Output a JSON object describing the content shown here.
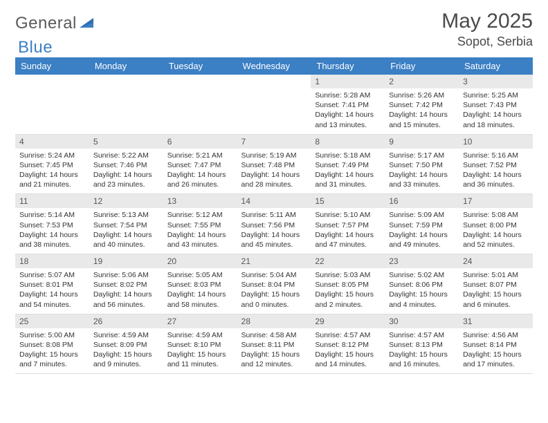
{
  "logo": {
    "word1": "General",
    "word2": "Blue",
    "accent_color": "#3b7fc4",
    "text_color": "#5a5a5a"
  },
  "header": {
    "month_title": "May 2025",
    "location": "Sopot, Serbia"
  },
  "calendar": {
    "day_header_bg": "#3b7fc4",
    "day_header_fg": "#ffffff",
    "daynum_bg": "#e9e9e9",
    "border_color": "#dcdcdc",
    "days_of_week": [
      "Sunday",
      "Monday",
      "Tuesday",
      "Wednesday",
      "Thursday",
      "Friday",
      "Saturday"
    ],
    "weeks": [
      [
        null,
        null,
        null,
        null,
        {
          "n": "1",
          "sunrise": "Sunrise: 5:28 AM",
          "sunset": "Sunset: 7:41 PM",
          "daylight": "Daylight: 14 hours and 13 minutes."
        },
        {
          "n": "2",
          "sunrise": "Sunrise: 5:26 AM",
          "sunset": "Sunset: 7:42 PM",
          "daylight": "Daylight: 14 hours and 15 minutes."
        },
        {
          "n": "3",
          "sunrise": "Sunrise: 5:25 AM",
          "sunset": "Sunset: 7:43 PM",
          "daylight": "Daylight: 14 hours and 18 minutes."
        }
      ],
      [
        {
          "n": "4",
          "sunrise": "Sunrise: 5:24 AM",
          "sunset": "Sunset: 7:45 PM",
          "daylight": "Daylight: 14 hours and 21 minutes."
        },
        {
          "n": "5",
          "sunrise": "Sunrise: 5:22 AM",
          "sunset": "Sunset: 7:46 PM",
          "daylight": "Daylight: 14 hours and 23 minutes."
        },
        {
          "n": "6",
          "sunrise": "Sunrise: 5:21 AM",
          "sunset": "Sunset: 7:47 PM",
          "daylight": "Daylight: 14 hours and 26 minutes."
        },
        {
          "n": "7",
          "sunrise": "Sunrise: 5:19 AM",
          "sunset": "Sunset: 7:48 PM",
          "daylight": "Daylight: 14 hours and 28 minutes."
        },
        {
          "n": "8",
          "sunrise": "Sunrise: 5:18 AM",
          "sunset": "Sunset: 7:49 PM",
          "daylight": "Daylight: 14 hours and 31 minutes."
        },
        {
          "n": "9",
          "sunrise": "Sunrise: 5:17 AM",
          "sunset": "Sunset: 7:50 PM",
          "daylight": "Daylight: 14 hours and 33 minutes."
        },
        {
          "n": "10",
          "sunrise": "Sunrise: 5:16 AM",
          "sunset": "Sunset: 7:52 PM",
          "daylight": "Daylight: 14 hours and 36 minutes."
        }
      ],
      [
        {
          "n": "11",
          "sunrise": "Sunrise: 5:14 AM",
          "sunset": "Sunset: 7:53 PM",
          "daylight": "Daylight: 14 hours and 38 minutes."
        },
        {
          "n": "12",
          "sunrise": "Sunrise: 5:13 AM",
          "sunset": "Sunset: 7:54 PM",
          "daylight": "Daylight: 14 hours and 40 minutes."
        },
        {
          "n": "13",
          "sunrise": "Sunrise: 5:12 AM",
          "sunset": "Sunset: 7:55 PM",
          "daylight": "Daylight: 14 hours and 43 minutes."
        },
        {
          "n": "14",
          "sunrise": "Sunrise: 5:11 AM",
          "sunset": "Sunset: 7:56 PM",
          "daylight": "Daylight: 14 hours and 45 minutes."
        },
        {
          "n": "15",
          "sunrise": "Sunrise: 5:10 AM",
          "sunset": "Sunset: 7:57 PM",
          "daylight": "Daylight: 14 hours and 47 minutes."
        },
        {
          "n": "16",
          "sunrise": "Sunrise: 5:09 AM",
          "sunset": "Sunset: 7:59 PM",
          "daylight": "Daylight: 14 hours and 49 minutes."
        },
        {
          "n": "17",
          "sunrise": "Sunrise: 5:08 AM",
          "sunset": "Sunset: 8:00 PM",
          "daylight": "Daylight: 14 hours and 52 minutes."
        }
      ],
      [
        {
          "n": "18",
          "sunrise": "Sunrise: 5:07 AM",
          "sunset": "Sunset: 8:01 PM",
          "daylight": "Daylight: 14 hours and 54 minutes."
        },
        {
          "n": "19",
          "sunrise": "Sunrise: 5:06 AM",
          "sunset": "Sunset: 8:02 PM",
          "daylight": "Daylight: 14 hours and 56 minutes."
        },
        {
          "n": "20",
          "sunrise": "Sunrise: 5:05 AM",
          "sunset": "Sunset: 8:03 PM",
          "daylight": "Daylight: 14 hours and 58 minutes."
        },
        {
          "n": "21",
          "sunrise": "Sunrise: 5:04 AM",
          "sunset": "Sunset: 8:04 PM",
          "daylight": "Daylight: 15 hours and 0 minutes."
        },
        {
          "n": "22",
          "sunrise": "Sunrise: 5:03 AM",
          "sunset": "Sunset: 8:05 PM",
          "daylight": "Daylight: 15 hours and 2 minutes."
        },
        {
          "n": "23",
          "sunrise": "Sunrise: 5:02 AM",
          "sunset": "Sunset: 8:06 PM",
          "daylight": "Daylight: 15 hours and 4 minutes."
        },
        {
          "n": "24",
          "sunrise": "Sunrise: 5:01 AM",
          "sunset": "Sunset: 8:07 PM",
          "daylight": "Daylight: 15 hours and 6 minutes."
        }
      ],
      [
        {
          "n": "25",
          "sunrise": "Sunrise: 5:00 AM",
          "sunset": "Sunset: 8:08 PM",
          "daylight": "Daylight: 15 hours and 7 minutes."
        },
        {
          "n": "26",
          "sunrise": "Sunrise: 4:59 AM",
          "sunset": "Sunset: 8:09 PM",
          "daylight": "Daylight: 15 hours and 9 minutes."
        },
        {
          "n": "27",
          "sunrise": "Sunrise: 4:59 AM",
          "sunset": "Sunset: 8:10 PM",
          "daylight": "Daylight: 15 hours and 11 minutes."
        },
        {
          "n": "28",
          "sunrise": "Sunrise: 4:58 AM",
          "sunset": "Sunset: 8:11 PM",
          "daylight": "Daylight: 15 hours and 12 minutes."
        },
        {
          "n": "29",
          "sunrise": "Sunrise: 4:57 AM",
          "sunset": "Sunset: 8:12 PM",
          "daylight": "Daylight: 15 hours and 14 minutes."
        },
        {
          "n": "30",
          "sunrise": "Sunrise: 4:57 AM",
          "sunset": "Sunset: 8:13 PM",
          "daylight": "Daylight: 15 hours and 16 minutes."
        },
        {
          "n": "31",
          "sunrise": "Sunrise: 4:56 AM",
          "sunset": "Sunset: 8:14 PM",
          "daylight": "Daylight: 15 hours and 17 minutes."
        }
      ]
    ]
  }
}
